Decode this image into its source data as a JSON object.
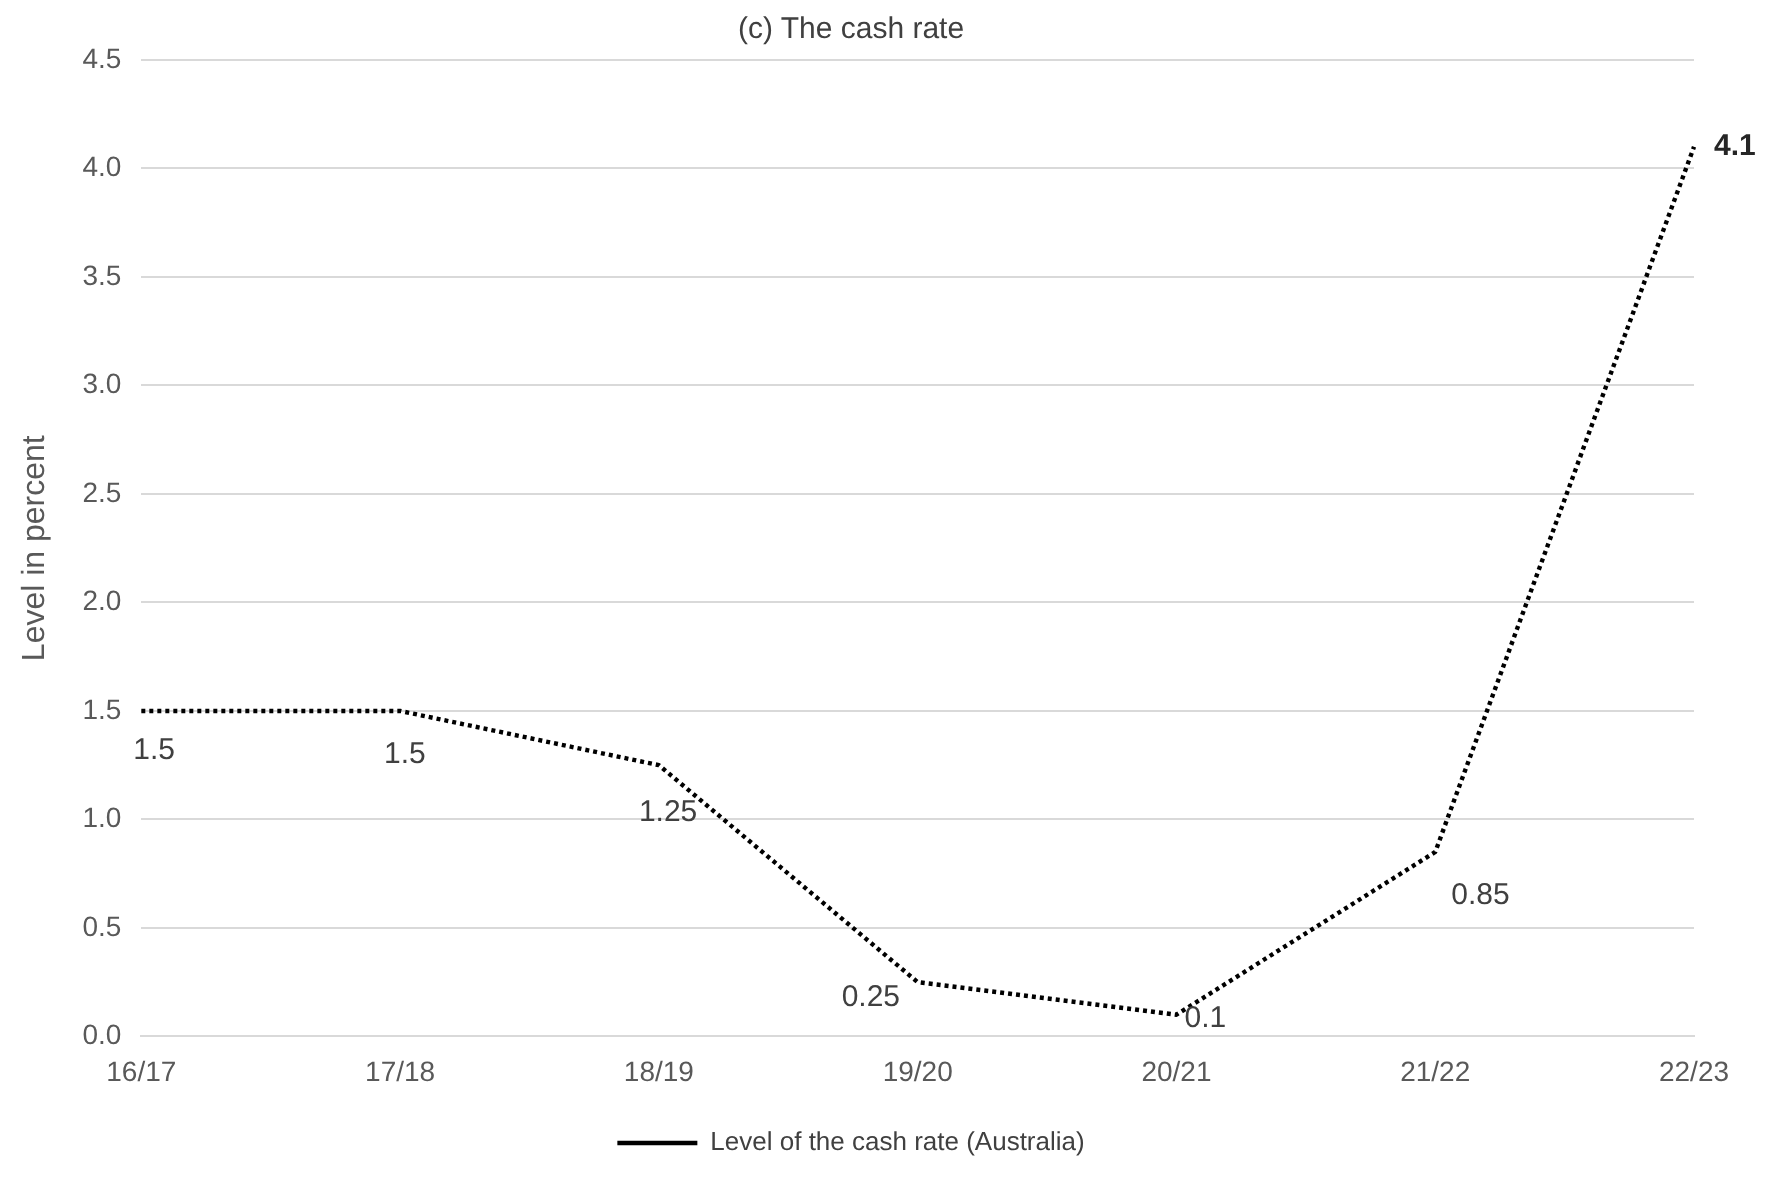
{
  "chart_data": {
    "type": "line",
    "title": "(c) The cash rate",
    "ylabel": "Level in percent",
    "categories": [
      "16/17",
      "17/18",
      "18/19",
      "19/20",
      "20/21",
      "21/22",
      "22/23"
    ],
    "series": [
      {
        "name": "Level of the cash rate (Australia)",
        "color": "#000000",
        "values": [
          1.5,
          1.5,
          1.25,
          0.25,
          0.1,
          0.85,
          4.1
        ]
      }
    ],
    "ylim": [
      0,
      4.5
    ],
    "yticks": [
      {
        "value": 0,
        "label": "0.0"
      },
      {
        "value": 0.5,
        "label": "0.5"
      },
      {
        "value": 1,
        "label": "1.0"
      },
      {
        "value": 1.5,
        "label": "1.5"
      },
      {
        "value": 2,
        "label": "2.0"
      },
      {
        "value": 2.5,
        "label": "2.5"
      },
      {
        "value": 3,
        "label": "3.0"
      },
      {
        "value": 3.5,
        "label": "3.5"
      },
      {
        "value": 4,
        "label": "4.0"
      },
      {
        "value": 4.5,
        "label": "4.5"
      }
    ],
    "grid": "y",
    "legend": "bottom",
    "marker": "none",
    "line_style": "dotted",
    "data_labels": true
  }
}
